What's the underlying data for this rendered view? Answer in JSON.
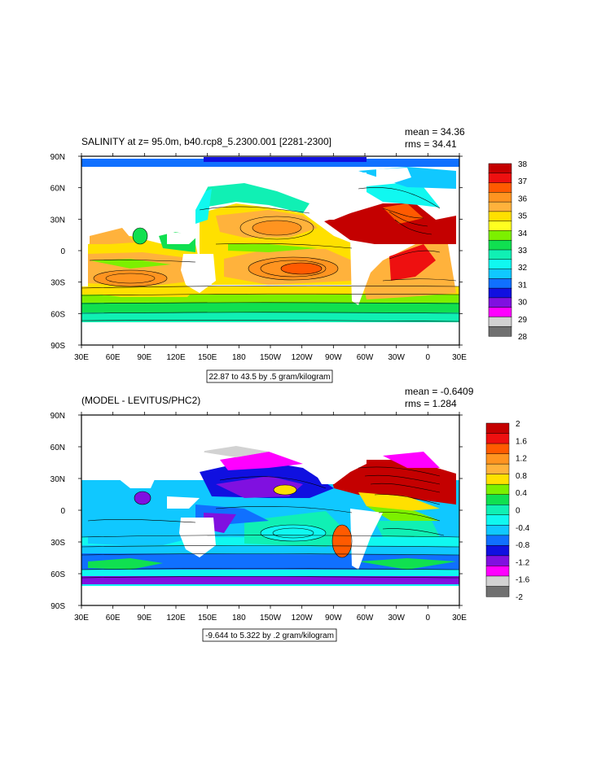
{
  "panels": [
    {
      "id": "salinity",
      "title": "SALINITY at z=  95.0m, b40.rcp8_5.2300.001 [2281-2300]",
      "mean_text": "mean = 34.36",
      "rms_text": "rms = 34.41",
      "range_text": "22.87 to 43.5 by .5 gram/kilogram",
      "lat_labels": [
        "90N",
        "60N",
        "30N",
        "0",
        "30S",
        "60S",
        "90S"
      ],
      "lon_labels": [
        "30E",
        "60E",
        "90E",
        "120E",
        "150E",
        "180",
        "150W",
        "120W",
        "90W",
        "60W",
        "30W",
        "0",
        "30E"
      ],
      "colorbar_labels": [
        "38",
        "37",
        "36",
        "35",
        "34",
        "33",
        "32",
        "31",
        "30",
        "29",
        "28"
      ],
      "colorbar_colors": [
        "#c40000",
        "#ee1010",
        "#ff5a00",
        "#ff9420",
        "#ffb23c",
        "#ffe000",
        "#ffff20",
        "#7cf000",
        "#10e050",
        "#10f0b4",
        "#10f8f0",
        "#10c8ff",
        "#1070ff",
        "#1010e0",
        "#8010e0",
        "#ff00ff",
        "#d2d2d2",
        "#707070"
      ]
    },
    {
      "id": "difference",
      "title": "(MODEL - LEVITUS/PHC2)",
      "mean_text": "mean = -0.6409",
      "rms_text": "rms = 1.284",
      "range_text": "-9.644 to 5.322 by .2 gram/kilogram",
      "lat_labels": [
        "90N",
        "60N",
        "30N",
        "0",
        "30S",
        "60S",
        "90S"
      ],
      "lon_labels": [
        "30E",
        "60E",
        "90E",
        "120E",
        "150E",
        "180",
        "150W",
        "120W",
        "90W",
        "60W",
        "30W",
        "0",
        "30E"
      ],
      "colorbar_labels": [
        "2",
        "1.6",
        "1.2",
        "0.8",
        "0.4",
        "0",
        "-0.4",
        "-0.8",
        "-1.2",
        "-1.6",
        "-2"
      ],
      "colorbar_colors": [
        "#c40000",
        "#ee1010",
        "#ff5a00",
        "#ff9420",
        "#ffb23c",
        "#ffe000",
        "#7cf000",
        "#10e050",
        "#10f0b4",
        "#10f8f0",
        "#10c8ff",
        "#1070ff",
        "#1010e0",
        "#8010e0",
        "#ff00ff",
        "#d2d2d2",
        "#707070"
      ]
    }
  ],
  "colors": {
    "land": "#ffffff",
    "frame": "#000000"
  }
}
